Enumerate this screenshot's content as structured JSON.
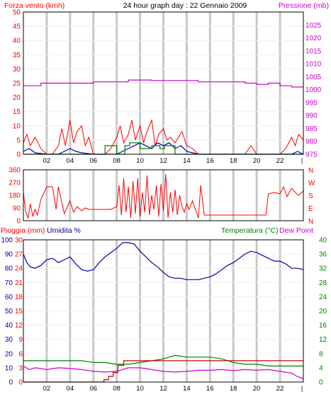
{
  "header": {
    "left_title": "Forza vento (kmh)",
    "center_title": "24 hour graph day : 22 Gennaio 2009",
    "right_title": "Pressione (mb)"
  },
  "lower_header": {
    "rain_title": "Pioggia (mm)",
    "humidity_title": "Umidita %",
    "temp_title": "Temperatura (°C)",
    "dew_title": "Dew Point"
  },
  "colors": {
    "red": "#ff0000",
    "magenta": "#cc00cc",
    "blue": "#0000aa",
    "green": "#008000",
    "dark_red": "#cc0000",
    "grid": "#c8c8c8",
    "frame": "#000000"
  },
  "chart_data": [
    {
      "type": "line",
      "title": "24 hour graph day : 22 Gennaio 2009",
      "x_ticks": [
        "02",
        "04",
        "06",
        "08",
        "10",
        "12",
        "14",
        "16",
        "18",
        "20",
        "22"
      ],
      "left_axis": {
        "label": "Forza vento (kmh)",
        "ticks": [
          0,
          5,
          10,
          15,
          20,
          25,
          30,
          35,
          40,
          45,
          50
        ],
        "ylim": [
          0,
          50
        ]
      },
      "right_axis": {
        "label": "Pressione (mb)",
        "ticks": [
          975,
          980,
          985,
          990,
          995,
          1000,
          1005,
          1010,
          1015,
          1020,
          1025
        ],
        "ylim": [
          975,
          1030
        ]
      },
      "series": [
        {
          "axis": "right",
          "x": [
            0,
            1.5,
            1.5,
            6,
            6,
            9,
            9,
            11,
            11,
            15,
            15,
            17,
            17,
            19,
            19,
            20,
            20,
            21,
            21,
            22,
            22,
            23,
            23,
            24
          ],
          "y": [
            1001.5,
            1001.5,
            1002.5,
            1002.5,
            1003,
            1003,
            1003.7,
            1003.7,
            1003.5,
            1003.5,
            1003,
            1003,
            1003,
            1003,
            1002.5,
            1002.5,
            1002,
            1002,
            1002.5,
            1002.5,
            1001.5,
            1001.5,
            1001,
            1001
          ]
        },
        {
          "axis": "left",
          "x": [
            0,
            0.3,
            0.6,
            1,
            1.5,
            2,
            2.5,
            3,
            3.3,
            3.6,
            4,
            4.3,
            4.6,
            5,
            5.3,
            5.6,
            6,
            6.5,
            7,
            7.5,
            8,
            8.3,
            8.6,
            9,
            9.3,
            9.6,
            10,
            10.3,
            10.6,
            11,
            11.3,
            11.6,
            12,
            12.3,
            12.6,
            13,
            13.3,
            13.6,
            14,
            14.5,
            15,
            16,
            17,
            18,
            19,
            19.5,
            20,
            21,
            22,
            22.5,
            23,
            23.3,
            23.6,
            24
          ],
          "y": [
            4,
            7,
            3,
            6,
            2,
            0,
            0,
            3,
            9,
            3,
            12,
            4,
            8,
            10,
            3,
            6,
            0,
            0,
            0,
            2,
            6,
            10,
            4,
            7,
            12,
            5,
            10,
            4,
            8,
            12,
            3,
            7,
            9,
            5,
            6,
            4,
            6,
            8,
            3,
            2,
            0,
            0,
            0,
            0,
            0,
            3,
            0,
            0,
            0,
            2,
            6,
            3,
            7,
            5
          ]
        },
        {
          "axis": "left",
          "x": [
            0,
            0.5,
            1,
            2,
            3,
            3.5,
            4,
            4.5,
            5,
            6,
            8,
            8.5,
            9,
            9.5,
            10,
            10.5,
            11,
            11.5,
            12,
            12.5,
            13,
            13.5,
            14,
            14.5,
            15,
            23,
            23.5,
            24
          ],
          "y": [
            1,
            2,
            0.5,
            0,
            0,
            1,
            2,
            1,
            0.5,
            0,
            0,
            1,
            2,
            3,
            4,
            3,
            2,
            4,
            3,
            4,
            2,
            3,
            1,
            0.5,
            0,
            0,
            1,
            0
          ]
        },
        {
          "axis": "left",
          "x": [
            0,
            7,
            7,
            8,
            8,
            8.7,
            8.7,
            9.1,
            9.1,
            10,
            10,
            11,
            11,
            11.7,
            11.7,
            12.1,
            12.1,
            13,
            13,
            24
          ],
          "y": [
            0,
            0,
            3,
            3,
            0,
            0,
            3,
            3,
            4,
            4,
            2,
            2,
            3,
            3,
            2,
            2,
            3,
            3,
            0,
            0
          ]
        }
      ]
    },
    {
      "type": "line",
      "left_axis": {
        "ticks": [
          0,
          90,
          180,
          270,
          360
        ],
        "ylim": [
          0,
          360
        ]
      },
      "right_axis": {
        "ticks": [
          "N",
          "W",
          "S",
          "E",
          "N"
        ]
      },
      "series": [
        {
          "x": [
            0,
            0.2,
            0.4,
            0.6,
            0.8,
            1,
            1.2,
            1.5,
            2,
            2.5,
            2.8,
            3,
            3.5,
            4,
            4.3,
            4.6,
            5,
            5.3,
            5.6,
            6,
            6.5,
            7,
            7.5,
            8,
            8.2,
            8.4,
            8.6,
            8.8,
            9,
            9.2,
            9.4,
            9.6,
            9.8,
            10,
            10.2,
            10.4,
            10.6,
            10.8,
            11,
            11.2,
            11.4,
            11.6,
            11.8,
            12,
            12.2,
            12.4,
            12.6,
            12.8,
            13,
            13.2,
            13.4,
            13.6,
            13.8,
            14,
            14.2,
            14.5,
            15,
            15.2,
            15.5,
            16,
            17,
            18,
            19,
            20,
            20.5,
            20.8,
            21,
            21.5,
            22,
            22.3,
            22.6,
            23,
            23.3,
            23.6,
            24
          ],
          "y": [
            200,
            60,
            20,
            120,
            30,
            80,
            40,
            150,
            240,
            240,
            80,
            240,
            50,
            140,
            60,
            100,
            70,
            90,
            80,
            80,
            80,
            80,
            80,
            100,
            250,
            40,
            300,
            60,
            240,
            20,
            280,
            50,
            300,
            30,
            200,
            60,
            320,
            40,
            180,
            80,
            250,
            30,
            260,
            70,
            330,
            20,
            200,
            60,
            220,
            40,
            180,
            100,
            60,
            120,
            80,
            140,
            20,
            250,
            40,
            40,
            40,
            40,
            40,
            40,
            40,
            40,
            190,
            200,
            190,
            240,
            170,
            230,
            200,
            180,
            210
          ]
        }
      ]
    },
    {
      "type": "line",
      "x_ticks": [
        "02",
        "04",
        "06",
        "08",
        "10",
        "12",
        "14",
        "16",
        "18",
        "20",
        "22"
      ],
      "left_axis": {
        "label": "Pioggia (mm)",
        "ticks": [
          0,
          3,
          6,
          9,
          12,
          15,
          18,
          21,
          24,
          27,
          30
        ],
        "ylim": [
          0,
          30
        ]
      },
      "left_axis2": {
        "label": "Umidita %",
        "ticks": [
          0,
          10,
          20,
          30,
          40,
          50,
          60,
          70,
          80,
          90,
          100
        ],
        "ylim": [
          0,
          100
        ]
      },
      "right_axis": {
        "label": "Temperatura (°C)",
        "ticks": [
          0,
          4,
          8,
          12,
          16,
          20,
          24,
          28,
          32,
          36,
          40
        ],
        "ylim": [
          0,
          40
        ]
      },
      "series": [
        {
          "name": "Umidita %",
          "axis": "left2",
          "x": [
            0,
            0.3,
            0.6,
            1,
            1.5,
            2,
            2.5,
            3,
            3.5,
            4,
            4.5,
            5,
            5.5,
            6,
            6.5,
            7,
            7.5,
            8,
            8.5,
            9,
            9.5,
            10,
            10.5,
            11,
            11.5,
            12,
            12.5,
            13,
            13.5,
            14,
            14.5,
            15,
            15.5,
            16,
            16.5,
            17,
            17.5,
            18,
            18.5,
            19,
            19.5,
            20,
            20.5,
            21,
            21.5,
            22,
            22.5,
            23,
            23.5,
            24
          ],
          "y": [
            90,
            84,
            81,
            80,
            82,
            86,
            87,
            84,
            86,
            88,
            83,
            79,
            78,
            79,
            84,
            88,
            91,
            94,
            98,
            98,
            97,
            92,
            88,
            84,
            81,
            77,
            74,
            73,
            73,
            72,
            72,
            72,
            73,
            74,
            76,
            79,
            82,
            84,
            87,
            90,
            92,
            91,
            89,
            87,
            85,
            85,
            83,
            80,
            80,
            79
          ]
        },
        {
          "name": "Temperatura (°C)",
          "axis": "right",
          "x": [
            0,
            2,
            4,
            5,
            6,
            7,
            8,
            9,
            10,
            11,
            12,
            12.5,
            13,
            14,
            15,
            16,
            17,
            18,
            19,
            20,
            21,
            22,
            23,
            24
          ],
          "y": [
            6,
            6,
            6,
            6,
            5.5,
            5.5,
            5,
            5,
            5.5,
            6,
            6.5,
            7,
            7.5,
            7,
            7,
            7,
            6.5,
            5.5,
            5,
            5,
            4.5,
            4.5,
            4.5,
            4.5
          ]
        },
        {
          "name": "Dew Point",
          "axis": "right",
          "x": [
            0,
            0.5,
            1,
            2,
            3,
            4,
            5,
            6,
            7,
            8,
            9,
            10,
            11,
            12,
            13,
            14,
            15,
            16,
            17,
            18,
            19,
            20,
            21,
            22,
            23,
            23.5,
            24
          ],
          "y": [
            4.5,
            3.5,
            4,
            3.5,
            4,
            3.8,
            3.5,
            3,
            2.8,
            3,
            4,
            4,
            3.5,
            3,
            2.8,
            3,
            3.3,
            3.3,
            3.5,
            3.2,
            3.5,
            3.3,
            3.5,
            3,
            2.5,
            1.5,
            1
          ]
        },
        {
          "name": "Pioggia (mm)",
          "axis": "left",
          "x": [
            0,
            6.9,
            6.9,
            7.3,
            7.3,
            7.7,
            7.7,
            8.1,
            8.1,
            8.6,
            8.6,
            24
          ],
          "y": [
            0,
            0,
            0.5,
            0.5,
            1.2,
            1.2,
            2,
            2,
            3.5,
            3.5,
            4.5,
            4.5
          ]
        }
      ]
    }
  ]
}
